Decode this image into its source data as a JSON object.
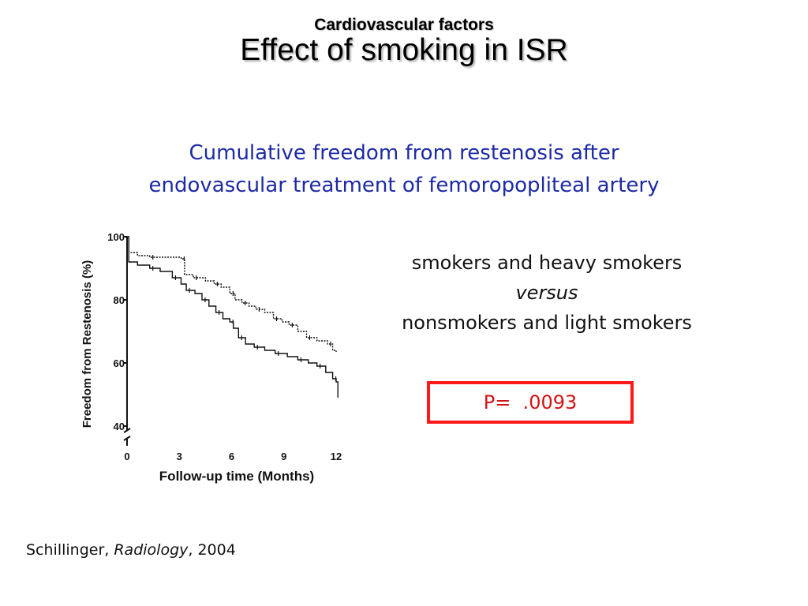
{
  "slide": {
    "subtitle": "Cardiovascular factors",
    "title": "Effect of smoking in ISR",
    "heading_line1": "Cumulative freedom from restenosis after",
    "heading_line2": "endovascular treatment of femoropopliteal artery",
    "comparison_line1": "smokers and heavy smokers",
    "comparison_line2": "versus",
    "comparison_line3": "nonsmokers and light smokers",
    "p_value": "P=  .0093",
    "citation_author": "Schillinger,",
    "citation_journal": "Radiology",
    "citation_year": ", 2004"
  },
  "colors": {
    "heading": "#1c2aa6",
    "p_box_border": "#ff1a1a",
    "p_text": "#d21414"
  },
  "chart_data": {
    "type": "line",
    "chart_style": "Kaplan-Meier step curves with censoring tick marks",
    "xlabel": "Follow-up time (Months)",
    "ylabel": "Freedom from Restenosis (%)",
    "xlim": [
      0,
      12
    ],
    "ylim": [
      40,
      100
    ],
    "y_axis_break": true,
    "xticks": [
      0,
      3,
      6,
      9,
      12
    ],
    "yticks": [
      40,
      60,
      80,
      100
    ],
    "grid": false,
    "series": [
      {
        "line_style": "dashed",
        "points": [
          [
            0,
            100
          ],
          [
            0.1,
            95
          ],
          [
            0.6,
            94
          ],
          [
            1.3,
            93.5
          ],
          [
            2.1,
            93.5
          ],
          [
            3.1,
            93
          ],
          [
            3.3,
            88
          ],
          [
            3.8,
            87
          ],
          [
            4.5,
            86
          ],
          [
            5.0,
            85
          ],
          [
            5.4,
            84
          ],
          [
            5.9,
            82
          ],
          [
            6.2,
            80
          ],
          [
            6.6,
            79
          ],
          [
            7.0,
            78
          ],
          [
            7.4,
            77
          ],
          [
            7.9,
            76
          ],
          [
            8.4,
            74
          ],
          [
            8.9,
            73
          ],
          [
            9.3,
            72
          ],
          [
            9.8,
            70
          ],
          [
            10.3,
            68
          ],
          [
            10.9,
            67
          ],
          [
            11.5,
            66
          ],
          [
            11.8,
            64
          ],
          [
            12,
            63.5
          ]
        ]
      },
      {
        "line_style": "solid",
        "points": [
          [
            0,
            100
          ],
          [
            0.1,
            92
          ],
          [
            0.6,
            91
          ],
          [
            1.3,
            90
          ],
          [
            1.9,
            89
          ],
          [
            2.6,
            87
          ],
          [
            3.1,
            85
          ],
          [
            3.4,
            83
          ],
          [
            3.9,
            82
          ],
          [
            4.3,
            80
          ],
          [
            4.7,
            78
          ],
          [
            5.1,
            76
          ],
          [
            5.5,
            74
          ],
          [
            5.9,
            73
          ],
          [
            6.1,
            71
          ],
          [
            6.4,
            68
          ],
          [
            6.8,
            66
          ],
          [
            7.3,
            65
          ],
          [
            7.9,
            64
          ],
          [
            8.5,
            63
          ],
          [
            9.2,
            62
          ],
          [
            9.8,
            61
          ],
          [
            10.4,
            60
          ],
          [
            10.9,
            59
          ],
          [
            11.4,
            57
          ],
          [
            11.8,
            55
          ],
          [
            12,
            54
          ],
          [
            12.1,
            49
          ]
        ]
      }
    ]
  }
}
